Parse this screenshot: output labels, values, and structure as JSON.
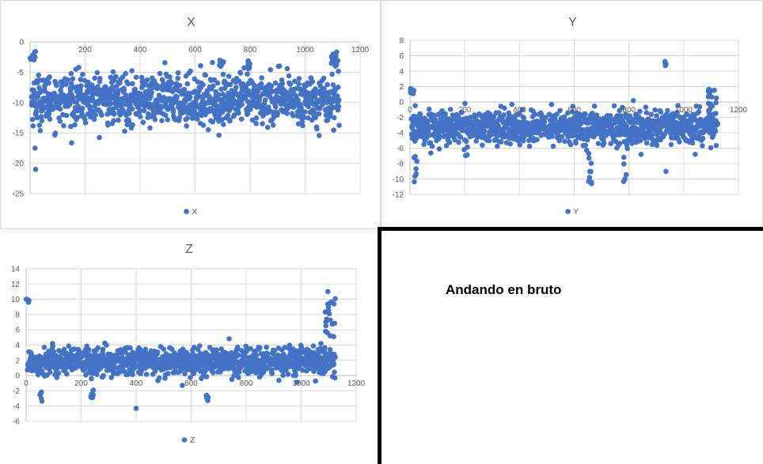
{
  "chart_data": [
    {
      "type": "scatter",
      "title": "X",
      "legend": "X",
      "legend_position": "bottom",
      "color": "#4472C4",
      "xlim": [
        0,
        1200
      ],
      "ylim": [
        -25,
        0
      ],
      "x_ticks": [
        200,
        400,
        600,
        800,
        1000,
        1200
      ],
      "y_ticks": [
        0,
        -5,
        -10,
        -15,
        -20,
        -25
      ],
      "x_axis_at": 0,
      "n_points": 1120,
      "series": [
        {
          "name": "X",
          "baseline": -9.5,
          "spread": 2.4,
          "features": [
            {
              "x_range": [
                0,
                20
              ],
              "y_range": [
                -3,
                -1.5
              ]
            },
            {
              "x": 18,
              "y": -17.5
            },
            {
              "x": 20,
              "y": -21
            },
            {
              "x_range": [
                690,
                705
              ],
              "y_range": [
                -5,
                -3
              ]
            },
            {
              "x_range": [
                785,
                800
              ],
              "y_range": [
                -4.5,
                -3
              ]
            },
            {
              "x_range": [
                1095,
                1125
              ],
              "y_range": [
                -4,
                -1.5
              ]
            }
          ]
        }
      ]
    },
    {
      "type": "scatter",
      "title": "Y",
      "legend": "Y",
      "legend_position": "bottom",
      "color": "#4472C4",
      "xlim": [
        0,
        1200
      ],
      "ylim": [
        -12,
        8
      ],
      "x_ticks": [
        0,
        200,
        400,
        600,
        800,
        1000,
        1200
      ],
      "y_ticks": [
        8,
        6,
        4,
        2,
        0,
        -2,
        -4,
        -6,
        -8,
        -10,
        -12
      ],
      "x_axis_at": 0,
      "n_points": 1120,
      "series": [
        {
          "name": "Y",
          "baseline": -3.3,
          "spread": 1.3,
          "features": [
            {
              "x_range": [
                0,
                20
              ],
              "y_range": [
                1,
                1.8
              ]
            },
            {
              "x_range": [
                10,
                25
              ],
              "y_range": [
                -10.5,
                -7
              ]
            },
            {
              "x_range": [
                650,
                665
              ],
              "y_range": [
                -11,
                -7
              ]
            },
            {
              "x_range": [
                780,
                790
              ],
              "y_range": [
                -10.5,
                -7
              ]
            },
            {
              "x_range": [
                930,
                940
              ],
              "y_range": [
                4.5,
                5.8
              ]
            },
            {
              "x": 935,
              "y": -9
            },
            {
              "x_range": [
                1090,
                1120
              ],
              "y_range": [
                -1,
                2
              ]
            }
          ]
        }
      ]
    },
    {
      "type": "scatter",
      "title": "Z",
      "legend": "Z",
      "legend_position": "bottom",
      "color": "#4472C4",
      "xlim": [
        0,
        1200
      ],
      "ylim": [
        -6,
        14
      ],
      "x_ticks": [
        0,
        200,
        400,
        600,
        800,
        1000,
        1200
      ],
      "y_ticks": [
        14,
        12,
        10,
        8,
        6,
        4,
        2,
        0,
        -2,
        -4,
        -6
      ],
      "x_axis_at": 0,
      "n_points": 1120,
      "series": [
        {
          "name": "Z",
          "baseline": 1.8,
          "spread": 1.1,
          "features": [
            {
              "x_range": [
                0,
                10
              ],
              "y_range": [
                9.5,
                10.2
              ]
            },
            {
              "x_range": [
                50,
                60
              ],
              "y_range": [
                -3.5,
                -2
              ]
            },
            {
              "x_range": [
                230,
                245
              ],
              "y_range": [
                -3,
                -1.5
              ]
            },
            {
              "x": 400,
              "y": -4.3
            },
            {
              "x_range": [
                655,
                665
              ],
              "y_range": [
                -3.5,
                -2.5
              ]
            },
            {
              "x_range": [
                1085,
                1125
              ],
              "y_range": [
                5,
                11.3
              ]
            }
          ]
        }
      ]
    }
  ],
  "note": {
    "text": "Andando en bruto"
  }
}
